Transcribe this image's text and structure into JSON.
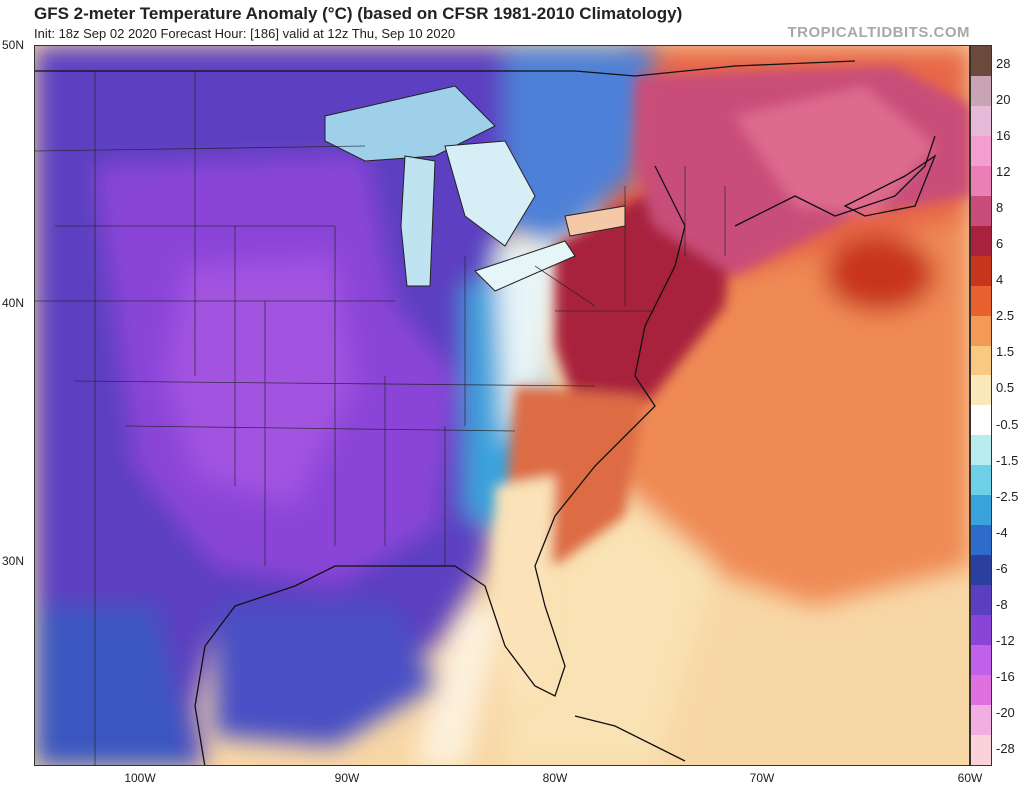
{
  "header": {
    "title": "GFS 2-meter Temperature Anomaly (°C) (based on CFSR 1981-2010 Climatology)",
    "subtitle": "Init: 18z Sep 02 2020   Forecast Hour: [186]   valid at 12z Thu, Sep 10 2020",
    "brand": "TROPICALTIDBITS.COM"
  },
  "axes": {
    "lat_labels": [
      "50N",
      "40N",
      "30N"
    ],
    "lon_labels": [
      "100W",
      "90W",
      "80W",
      "70W",
      "60W"
    ]
  },
  "colorbar": {
    "labels": [
      "28",
      "20",
      "16",
      "12",
      "8",
      "6",
      "4",
      "2.5",
      "1.5",
      "0.5",
      "-0.5",
      "-1.5",
      "-2.5",
      "-4",
      "-6",
      "-8",
      "-12",
      "-16",
      "-20",
      "-28"
    ],
    "colors": [
      "#6b4a3c",
      "#c9a4b4",
      "#e7b9d8",
      "#f39ed0",
      "#ea7fb5",
      "#c94d79",
      "#a8213e",
      "#c8351d",
      "#e8622f",
      "#f29a56",
      "#f7c983",
      "#fbe8b8",
      "#ffffff",
      "#b9ecee",
      "#6ed0e6",
      "#3aa3dc",
      "#2d6cc8",
      "#2b3f9e",
      "#5b3fc1",
      "#8a44d8",
      "#c160e8",
      "#e070e0",
      "#f2aee0",
      "#fbd2d8"
    ]
  },
  "map": {
    "features": [
      "Great Lakes",
      "Florida peninsula",
      "Nova Scotia warm anomaly",
      "Atlantic warm anomaly"
    ],
    "anomaly_colors": {
      "strong_cold": "#8a44d8",
      "cold": "#5b3fc1",
      "cool": "#3aa3dc",
      "neutral": "#ffffff",
      "warm": "#f29a56",
      "hot": "#c94d79",
      "very_hot": "#a8213e"
    }
  }
}
